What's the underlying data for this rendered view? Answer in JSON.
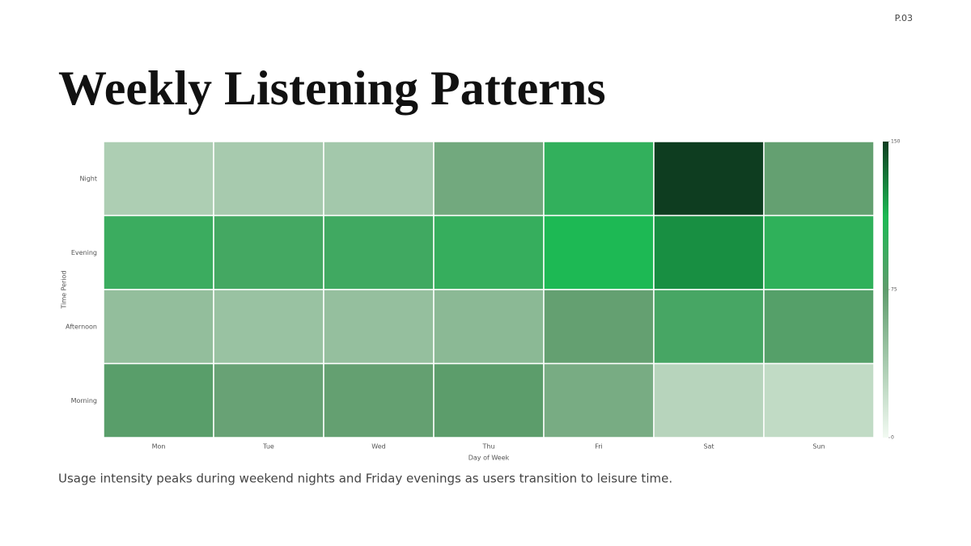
{
  "page_number": "P.03",
  "caption": "Usage intensity peaks during weekend nights and Friday evenings as users transition to leisure time.",
  "chart_data": {
    "type": "heatmap",
    "title": "Weekly Listening Patterns",
    "x_label": "Day of Week",
    "y_label": "Time Period",
    "categories": [
      "Mon",
      "Tue",
      "Wed",
      "Thu",
      "Fri",
      "Sat",
      "Sun"
    ],
    "rows": [
      "Night",
      "Evening",
      "Afternoon",
      "Morning"
    ],
    "values": [
      [
        35,
        38,
        40,
        65,
        100,
        150,
        72
      ],
      [
        95,
        90,
        92,
        98,
        112,
        125,
        102
      ],
      [
        48,
        45,
        47,
        52,
        72,
        88,
        80
      ],
      [
        78,
        70,
        72,
        76,
        62,
        30,
        25
      ]
    ],
    "zlim": [
      0,
      150
    ],
    "zticks": [
      0,
      75,
      150
    ],
    "colorscale": [
      {
        "value": 0,
        "color": "#f2faf2"
      },
      {
        "value": 75,
        "color": "#5e9c6c"
      },
      {
        "value": 112,
        "color": "#1db954"
      },
      {
        "value": 150,
        "color": "#0e3d20"
      }
    ]
  }
}
